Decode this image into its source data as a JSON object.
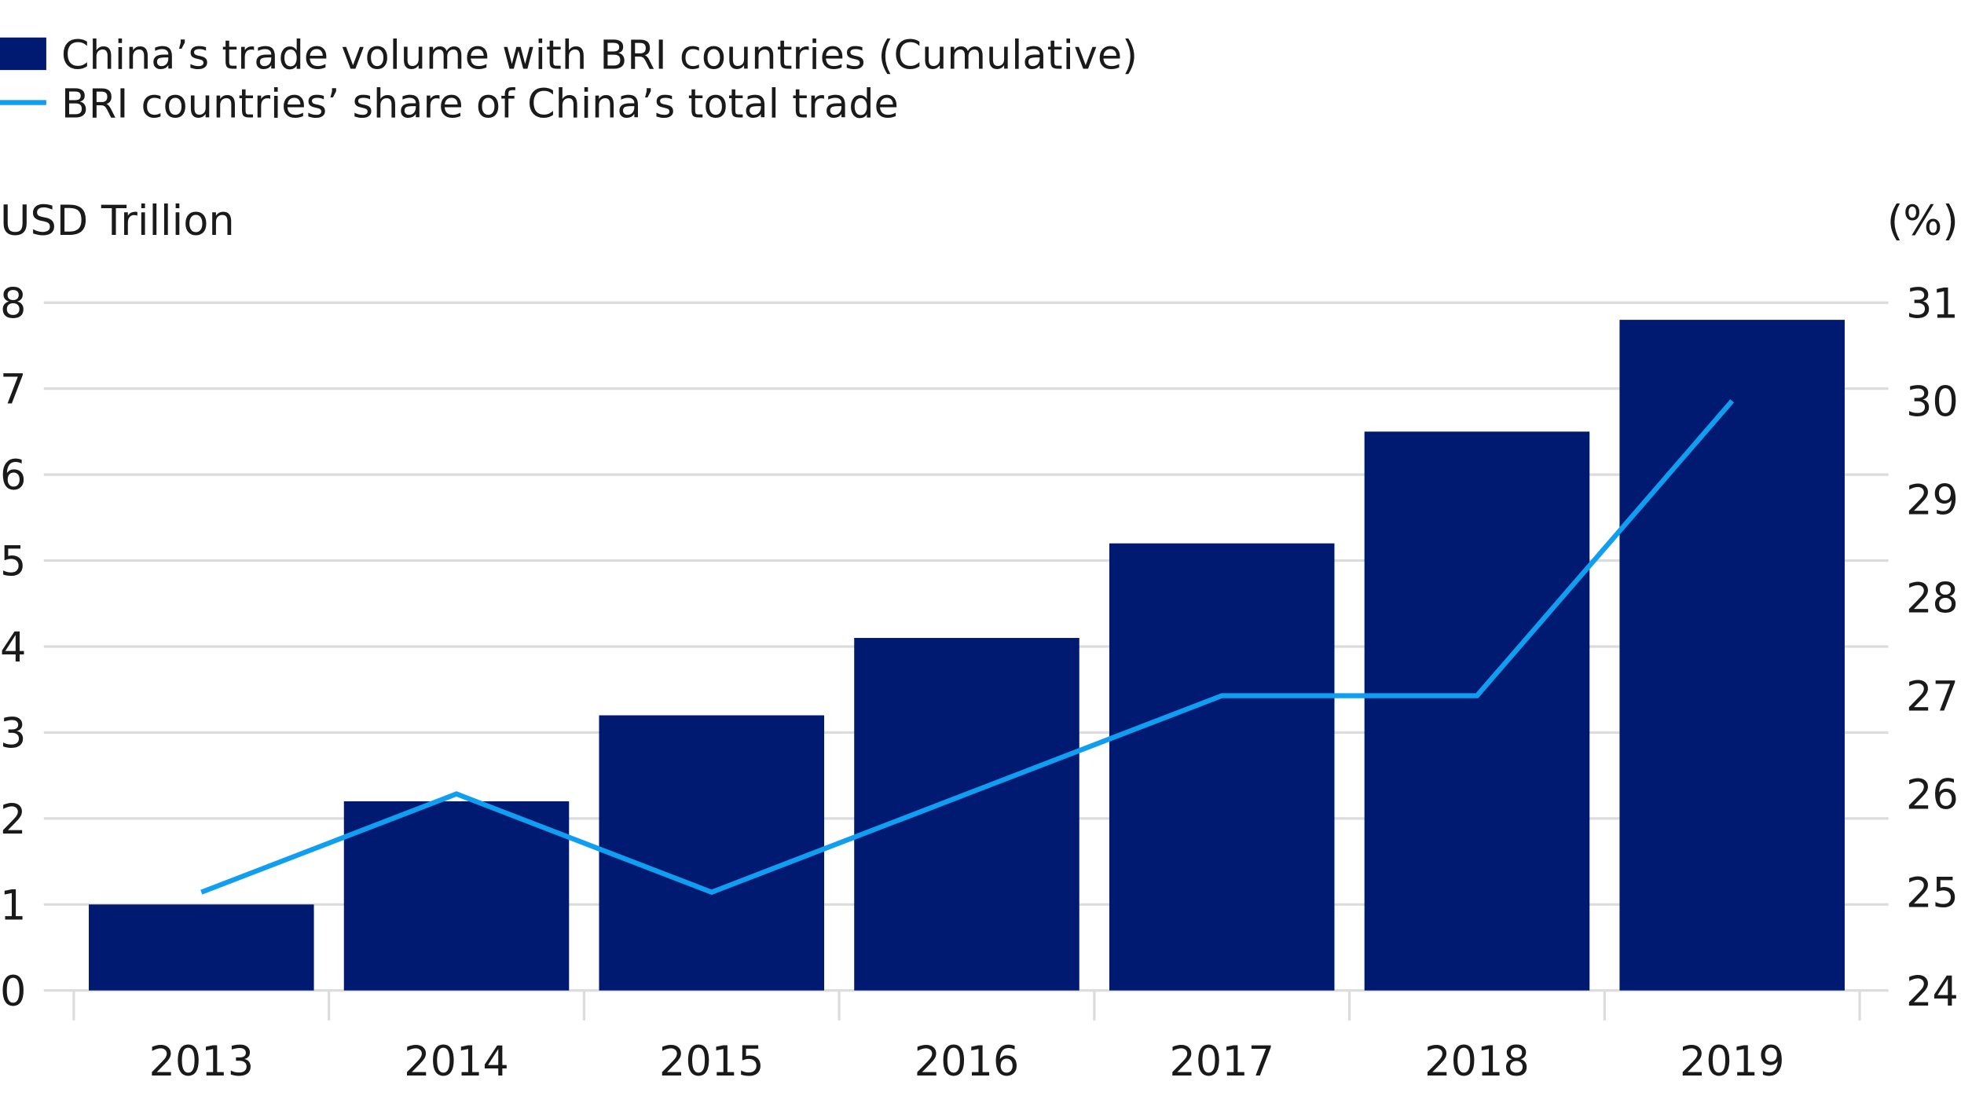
{
  "chart_data": {
    "type": "bar",
    "categories": [
      "2013",
      "2014",
      "2015",
      "2016",
      "2017",
      "2018",
      "2019"
    ],
    "series": [
      {
        "name": "China’s trade volume with BRI countries (Cumulative)",
        "kind": "bar",
        "axis": "left",
        "values": [
          1.0,
          2.2,
          3.2,
          4.1,
          5.2,
          6.5,
          7.8
        ],
        "color": "#001a72"
      },
      {
        "name": "BRI countries’ share of China’s total trade",
        "kind": "line",
        "axis": "right",
        "values": [
          25,
          26,
          25,
          26,
          27,
          27,
          30
        ],
        "color": "#0f9ef0"
      }
    ],
    "ylabel": "USD Trillion",
    "y2label": "(%)",
    "ylim": [
      0,
      8
    ],
    "y2lim": [
      24,
      31
    ],
    "yticks": [
      "0",
      "1",
      "2",
      "3",
      "4",
      "5",
      "6",
      "7",
      "8"
    ],
    "y2ticks": [
      "24",
      "25",
      "26",
      "27",
      "28",
      "29",
      "30",
      "31"
    ],
    "grid": true,
    "legend": "top-left",
    "gridColor": "#dcdcdc"
  }
}
